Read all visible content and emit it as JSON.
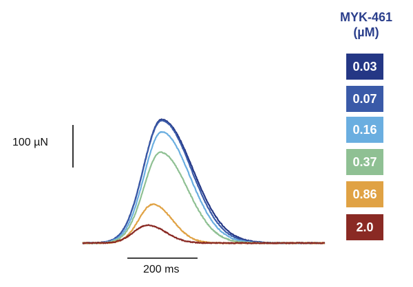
{
  "chart_data": {
    "type": "line",
    "title": "",
    "xlabel": "",
    "ylabel": "",
    "legend": {
      "title_line1": "MYK-461",
      "title_line2": "(µM)",
      "placement": "right"
    },
    "scale_bars": {
      "y": {
        "label": "100 µN",
        "value": 100,
        "unit": "µN"
      },
      "x": {
        "label": "200 ms",
        "value": 200,
        "unit": "ms"
      }
    },
    "x_range_ms": [
      0,
      690
    ],
    "y_range_uN": [
      0,
      305
    ],
    "series": [
      {
        "name": "0.03",
        "color": "#243785",
        "peak_uN": 290,
        "peak_time_ms": 225,
        "onset_ms": 20,
        "end_ms": 560,
        "rise_width_ms": 52,
        "decay_width_ms": 88
      },
      {
        "name": "0.07",
        "color": "#3a5aa8",
        "peak_uN": 288,
        "peak_time_ms": 225,
        "onset_ms": 20,
        "end_ms": 545,
        "rise_width_ms": 52,
        "decay_width_ms": 84
      },
      {
        "name": "0.16",
        "color": "#6aaee0",
        "peak_uN": 261,
        "peak_time_ms": 225,
        "onset_ms": 22,
        "end_ms": 520,
        "rise_width_ms": 50,
        "decay_width_ms": 80
      },
      {
        "name": "0.37",
        "color": "#8fc093",
        "peak_uN": 213,
        "peak_time_ms": 222,
        "onset_ms": 25,
        "end_ms": 490,
        "rise_width_ms": 48,
        "decay_width_ms": 76
      },
      {
        "name": "0.86",
        "color": "#e0a244",
        "peak_uN": 91,
        "peak_time_ms": 200,
        "onset_ms": 30,
        "end_ms": 420,
        "rise_width_ms": 40,
        "decay_width_ms": 55
      },
      {
        "name": "2.0",
        "color": "#8a2a24",
        "peak_uN": 42,
        "peak_time_ms": 185,
        "onset_ms": 30,
        "end_ms": 390,
        "rise_width_ms": 40,
        "decay_width_ms": 52
      }
    ]
  }
}
